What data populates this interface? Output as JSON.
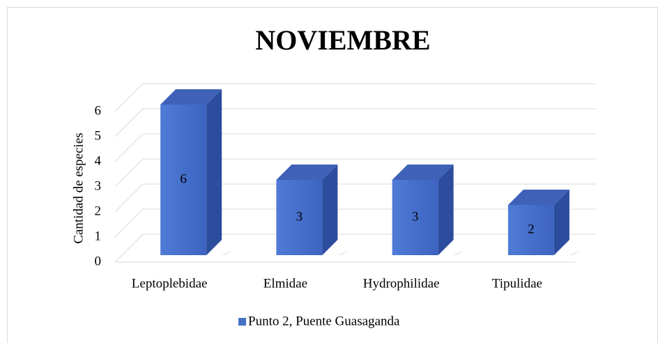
{
  "chart_data": {
    "type": "bar",
    "title": "NOVIEMBRE",
    "y_label": "Cantidad de especies",
    "categories": [
      "Leptoplebidae",
      "Elmidae",
      "Hydrophilidae",
      "Tipulidae"
    ],
    "series": [
      {
        "name": "Punto 2, Puente Guasaganda",
        "color": "#4472c4",
        "values": [
          6,
          3,
          3,
          2
        ]
      }
    ],
    "ylim": [
      0,
      6
    ],
    "yticks": [
      0,
      1,
      2,
      3,
      4,
      5,
      6
    ],
    "grid": true,
    "legend": "bottom"
  }
}
